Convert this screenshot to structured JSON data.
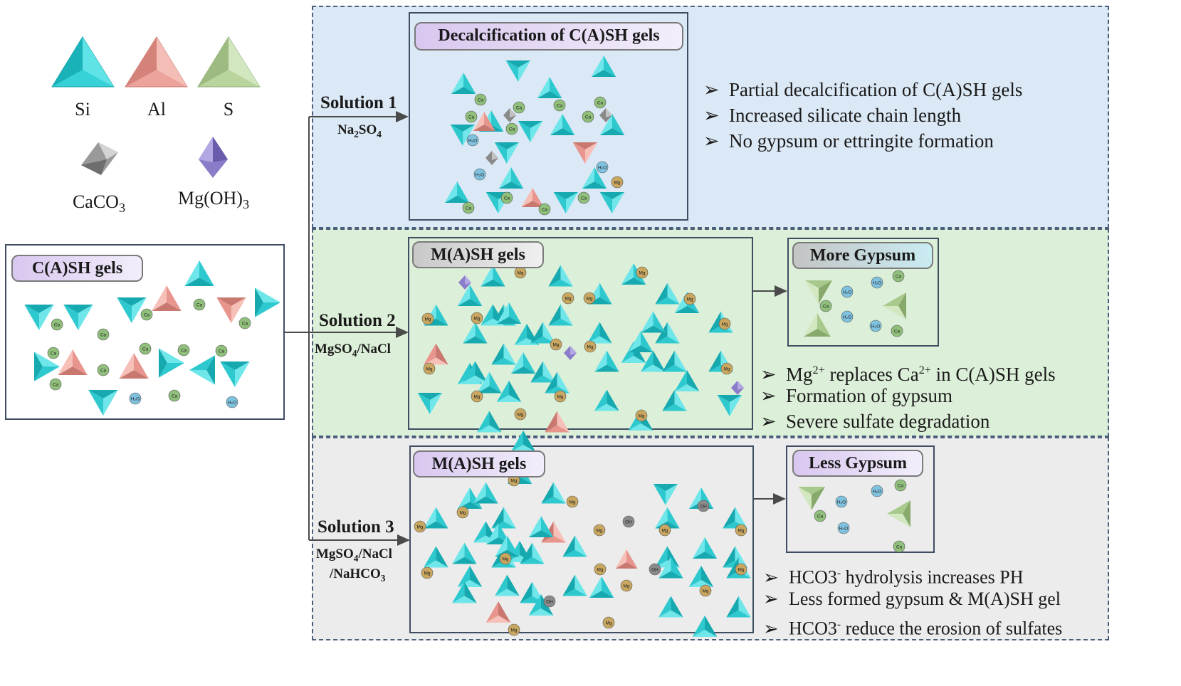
{
  "legend": {
    "si": "Si",
    "al": "Al",
    "s": "S",
    "caco3": "CaCO",
    "caco3_sub": "3",
    "mgoh3": "Mg(OH)",
    "mgoh3_sub": "3"
  },
  "source_box": {
    "title": "C(A)SH gels"
  },
  "solution1": {
    "title": "Solution 1",
    "chem_main": "Na",
    "chem_sub1": "2",
    "chem_mid": "SO",
    "chem_sub2": "4",
    "structure_title": "Decalcification of C(A)SH gels",
    "bullets": [
      "Partial decalcification of C(A)SH gels",
      "Increased silicate chain length",
      "No gypsum or ettringite formation"
    ]
  },
  "solution2": {
    "title": "Solution 2",
    "chem_a": "MgSO",
    "chem_a_sub": "4",
    "chem_b": "/NaCl",
    "structure_title": "M(A)SH gels",
    "product_title": "More Gypsum",
    "bullet1_a": "Mg",
    "bullet1_sup1": "2+",
    "bullet1_b": " replaces Ca",
    "bullet1_sup2": "2+",
    "bullet1_c": " in C(A)SH gels",
    "bullets": [
      "Formation of gypsum",
      "Severe sulfate degradation"
    ]
  },
  "solution3": {
    "title": "Solution 3",
    "chem_a": "MgSO",
    "chem_a_sub": "4",
    "chem_b": "/NaCl",
    "chem_c": "/NaHCO",
    "chem_c_sub": "3",
    "structure_title": "M(A)SH gels",
    "product_title": "Less Gypsum",
    "bullet1_a": "HCO3",
    "bullet1_sup": "-",
    "bullet1_b": " hydrolysis increases PH",
    "bullet2": "Less  formed gypsum & M(A)SH gel",
    "bullet3_a": "HCO3",
    "bullet3_sup": "-",
    "bullet3_b": " reduce the erosion of sulfates"
  },
  "ion_labels": {
    "ca": "Ca",
    "mg": "Mg",
    "h2o": "H₂O",
    "oh": "OH"
  },
  "colors": {
    "si": "#2ec9cf",
    "al": "#e8958e",
    "s": "#a8c98c",
    "panel1_bg": "#dbe8f5",
    "panel2_bg": "#dcefd8",
    "panel3_bg": "#ececec",
    "ca_ion": "#8fbf7a",
    "mg_ion": "#c9a760",
    "h2o_ion": "#7fc2df",
    "oh_ion": "#8a8a8a"
  },
  "arrow_marker": "➢"
}
